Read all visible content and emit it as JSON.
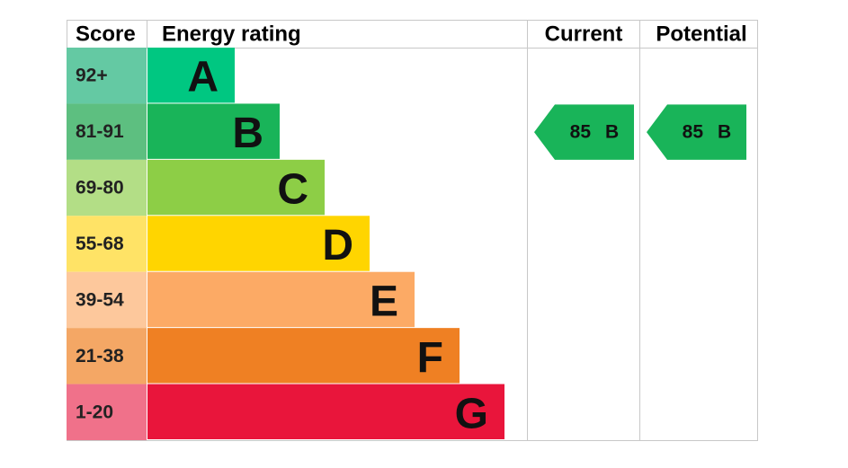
{
  "header": {
    "score": "Score",
    "rating": "Energy rating",
    "current": "Current",
    "potential": "Potential"
  },
  "bands": [
    {
      "score": "92+",
      "letter": "A",
      "color": "#00c781",
      "score_color": "#64c9a3"
    },
    {
      "score": "81-91",
      "letter": "B",
      "color": "#19b459",
      "score_color": "#5dbf80"
    },
    {
      "score": "69-80",
      "letter": "C",
      "color": "#8dce46",
      "score_color": "#b3de86"
    },
    {
      "score": "55-68",
      "letter": "D",
      "color": "#ffd500",
      "score_color": "#ffe366"
    },
    {
      "score": "39-54",
      "letter": "E",
      "color": "#fcaa65",
      "score_color": "#fdc89c"
    },
    {
      "score": "21-38",
      "letter": "F",
      "color": "#ef8023",
      "score_color": "#f4a765"
    },
    {
      "score": "1-20",
      "letter": "G",
      "color": "#e9153b",
      "score_color": "#f0718a"
    }
  ],
  "current": {
    "value": 85,
    "letter": "B"
  },
  "potential": {
    "value": 85,
    "letter": "B"
  }
}
